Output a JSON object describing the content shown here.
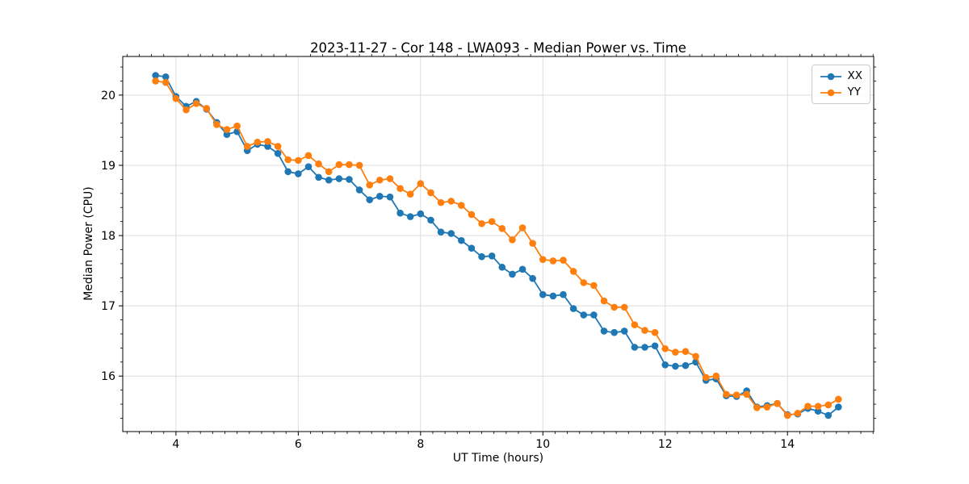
{
  "figure": {
    "background": "#ffffff"
  },
  "chart_data": {
    "type": "line",
    "title": "2023-11-27 - Cor 148 - LWA093 - Median Power vs. Time",
    "xlabel": "UT Time (hours)",
    "ylabel": "Median Power (CPU)",
    "xlim": [
      3.13,
      15.41
    ],
    "ylim": [
      15.21,
      20.55
    ],
    "x_ticks": [
      4,
      6,
      8,
      10,
      12,
      14
    ],
    "y_ticks": [
      16,
      17,
      18,
      19,
      20
    ],
    "minor_tick_step_x": 0.2,
    "minor_tick_step_y": 0.2,
    "grid": "major",
    "grid_color": "#dcdcdc",
    "spine_color": "#000000",
    "legend": {
      "position": "upper right",
      "entries": [
        "XX",
        "YY"
      ]
    },
    "x": [
      3.667,
      3.833,
      4.0,
      4.167,
      4.333,
      4.5,
      4.667,
      4.833,
      5.0,
      5.167,
      5.333,
      5.5,
      5.667,
      5.833,
      6.0,
      6.167,
      6.333,
      6.5,
      6.667,
      6.833,
      7.0,
      7.167,
      7.333,
      7.5,
      7.667,
      7.833,
      8.0,
      8.167,
      8.333,
      8.5,
      8.667,
      8.833,
      9.0,
      9.167,
      9.333,
      9.5,
      9.667,
      9.833,
      10.0,
      10.167,
      10.333,
      10.5,
      10.667,
      10.833,
      11.0,
      11.167,
      11.333,
      11.5,
      11.667,
      11.833,
      12.0,
      12.167,
      12.333,
      12.5,
      12.667,
      12.833,
      13.0,
      13.167,
      13.333,
      13.5,
      13.667,
      13.833,
      14.0,
      14.167,
      14.333,
      14.5,
      14.667,
      14.833
    ],
    "series": [
      {
        "name": "XX",
        "color": "#1f77b4",
        "marker": "circle",
        "values": [
          20.28,
          20.26,
          19.98,
          19.84,
          19.91,
          19.8,
          19.61,
          19.44,
          19.48,
          19.21,
          19.3,
          19.27,
          19.17,
          18.91,
          18.88,
          18.98,
          18.83,
          18.79,
          18.81,
          18.8,
          18.65,
          18.51,
          18.56,
          18.55,
          18.32,
          18.27,
          18.31,
          18.22,
          18.05,
          18.03,
          17.93,
          17.82,
          17.7,
          17.71,
          17.55,
          17.45,
          17.52,
          17.39,
          17.16,
          17.14,
          17.16,
          16.96,
          16.87,
          16.87,
          16.64,
          16.62,
          16.64,
          16.41,
          16.41,
          16.43,
          16.16,
          16.14,
          16.15,
          16.2,
          15.94,
          15.96,
          15.72,
          15.71,
          15.79,
          15.56,
          15.58,
          15.61,
          15.45,
          15.46,
          15.54,
          15.5,
          15.44,
          15.56
        ]
      },
      {
        "name": "YY",
        "color": "#ff7f0e",
        "marker": "circle",
        "values": [
          20.2,
          20.18,
          19.95,
          19.79,
          19.88,
          19.81,
          19.58,
          19.51,
          19.56,
          19.27,
          19.33,
          19.34,
          19.27,
          19.08,
          19.07,
          19.14,
          19.02,
          18.91,
          19.01,
          19.01,
          19.0,
          18.72,
          18.79,
          18.81,
          18.67,
          18.59,
          18.74,
          18.61,
          18.47,
          18.49,
          18.43,
          18.3,
          18.17,
          18.2,
          18.1,
          17.94,
          18.11,
          17.89,
          17.66,
          17.64,
          17.65,
          17.49,
          17.33,
          17.29,
          17.07,
          16.98,
          16.98,
          16.73,
          16.65,
          16.62,
          16.39,
          16.34,
          16.35,
          16.28,
          15.98,
          16.0,
          15.74,
          15.73,
          15.74,
          15.55,
          15.56,
          15.61,
          15.44,
          15.47,
          15.57,
          15.57,
          15.59,
          15.67
        ]
      }
    ]
  }
}
